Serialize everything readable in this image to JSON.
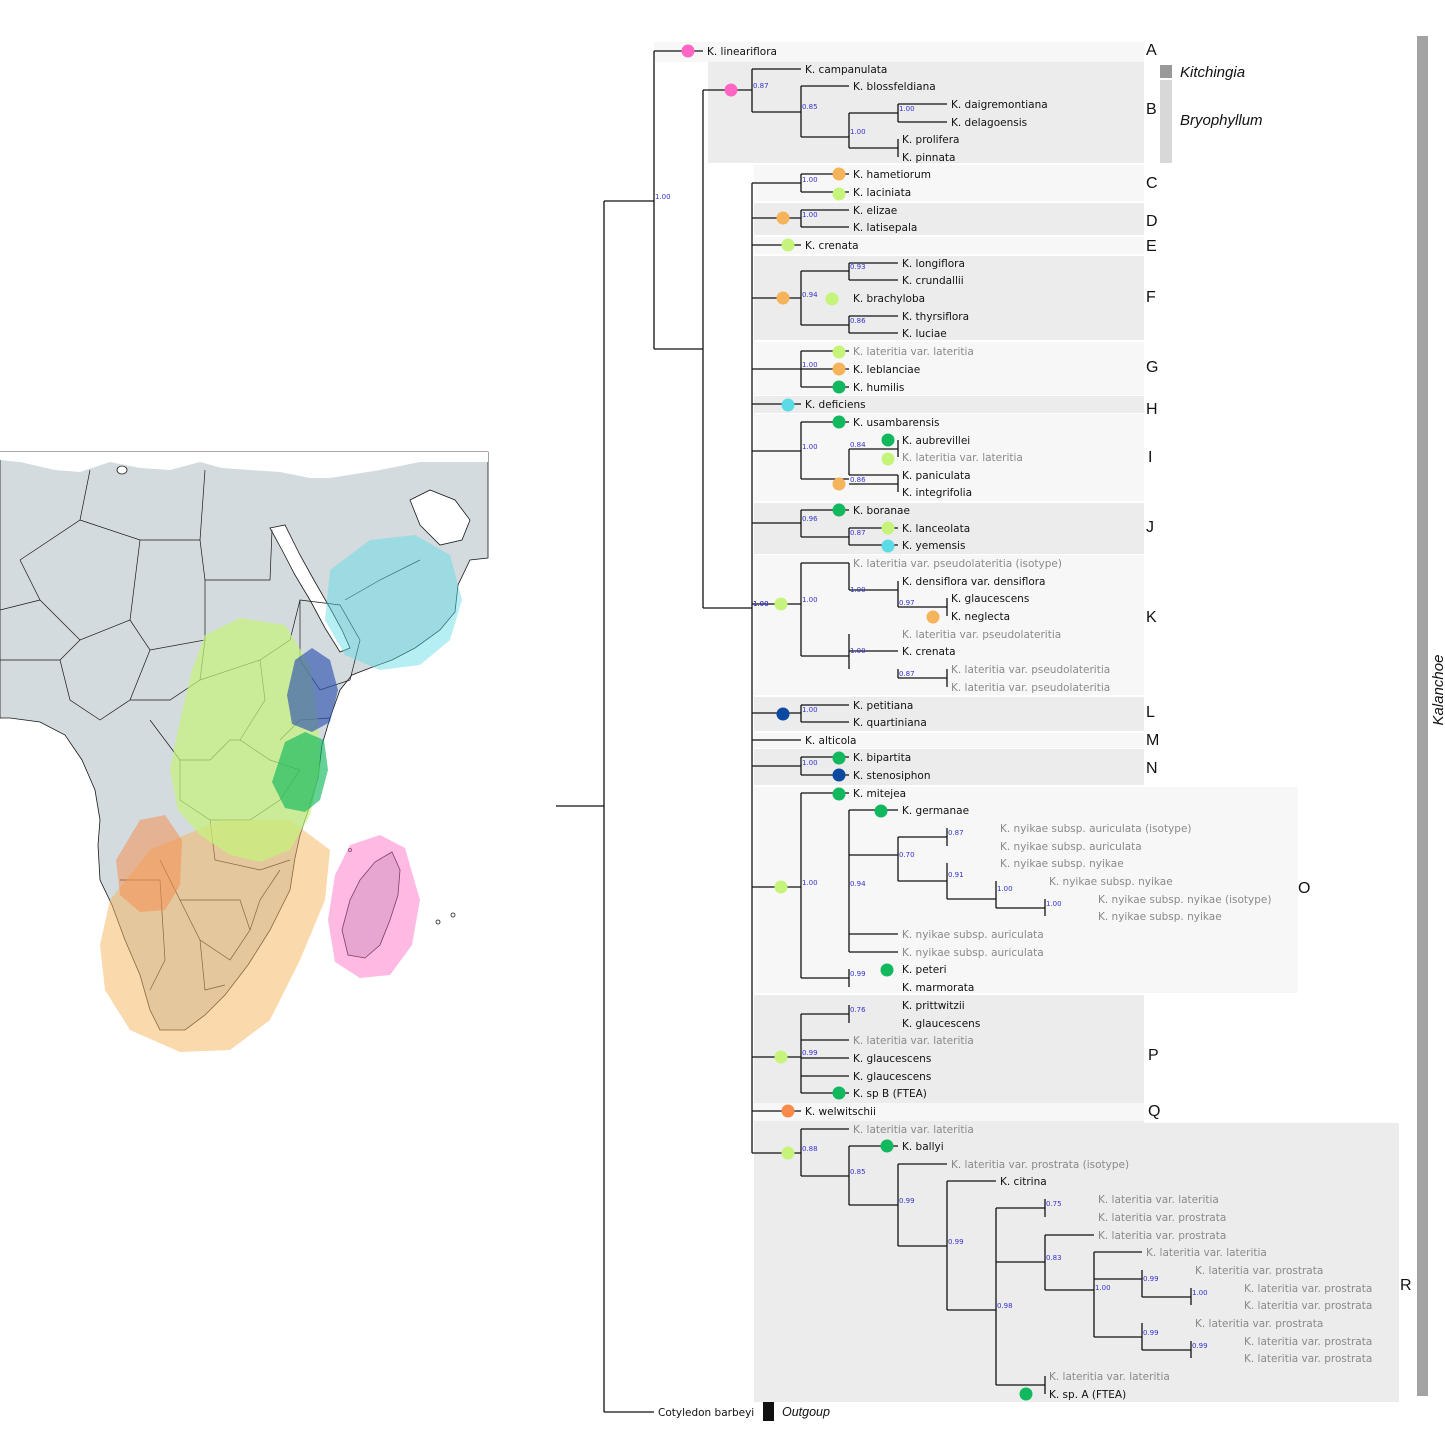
{
  "tip_colors": {
    "dark": "#111111",
    "grey": "#8a8a8a"
  },
  "region_colors": {
    "pink": "#ff66c4",
    "orange": "#f5b35a",
    "lime": "#c6f47a",
    "green": "#11b85e",
    "cyan": "#5bdbe6",
    "navy": "#0b4aa0",
    "darkorange": "#f88a4a"
  },
  "tips": [
    {
      "label": "K. lineariflora",
      "grey": false
    },
    {
      "label": "K. campanulata",
      "grey": false
    },
    {
      "label": "K. blossfeldiana",
      "grey": false
    },
    {
      "label": "K. daigremontiana",
      "grey": false
    },
    {
      "label": "K. delagoensis",
      "grey": false
    },
    {
      "label": "K. prolifera",
      "grey": false
    },
    {
      "label": "K. pinnata",
      "grey": false
    },
    {
      "label": "K. hametiorum",
      "grey": false
    },
    {
      "label": "K. laciniata",
      "grey": false
    },
    {
      "label": "K. elizae",
      "grey": false
    },
    {
      "label": "K. latisepala",
      "grey": false
    },
    {
      "label": "K. crenata",
      "grey": false
    },
    {
      "label": "K. longiflora",
      "grey": false
    },
    {
      "label": "K. crundallii",
      "grey": false
    },
    {
      "label": "K. brachyloba",
      "grey": false
    },
    {
      "label": "K. thyrsiflora",
      "grey": false
    },
    {
      "label": "K. luciae",
      "grey": false
    },
    {
      "label": "K. lateritia var. lateritia",
      "grey": true
    },
    {
      "label": "K. leblanciae",
      "grey": false
    },
    {
      "label": "K. humilis",
      "grey": false
    },
    {
      "label": "K. deficiens",
      "grey": false
    },
    {
      "label": "K. usambarensis",
      "grey": false
    },
    {
      "label": "K. aubrevillei",
      "grey": false
    },
    {
      "label": "K. lateritia var. lateritia",
      "grey": true
    },
    {
      "label": "K. paniculata",
      "grey": false
    },
    {
      "label": "K. integrifolia",
      "grey": false
    },
    {
      "label": "K. boranae",
      "grey": false
    },
    {
      "label": "K. lanceolata",
      "grey": false
    },
    {
      "label": "K. yemensis",
      "grey": false
    },
    {
      "label": "K. lateritia var. pseudolateritia (isotype)",
      "grey": true
    },
    {
      "label": "K. densiflora var. densiflora",
      "grey": false
    },
    {
      "label": "K. glaucescens",
      "grey": false
    },
    {
      "label": "K. neglecta",
      "grey": false
    },
    {
      "label": "K. lateritia var. pseudolateritia",
      "grey": true
    },
    {
      "label": "K. crenata",
      "grey": false
    },
    {
      "label": "K. lateritia var. pseudolateritia",
      "grey": true
    },
    {
      "label": "K. lateritia var. pseudolateritia",
      "grey": true
    },
    {
      "label": "K. petitiana",
      "grey": false
    },
    {
      "label": "K. quartiniana",
      "grey": false
    },
    {
      "label": "K. alticola",
      "grey": false
    },
    {
      "label": "K. bipartita",
      "grey": false
    },
    {
      "label": "K. stenosiphon",
      "grey": false
    },
    {
      "label": "K. mitejea",
      "grey": false
    },
    {
      "label": "K. germanae",
      "grey": false
    },
    {
      "label": "K. nyikae subsp. auriculata (isotype)",
      "grey": true
    },
    {
      "label": "K. nyikae subsp. auriculata",
      "grey": true
    },
    {
      "label": "K. nyikae subsp. nyikae",
      "grey": true
    },
    {
      "label": "K. nyikae subsp. nyikae",
      "grey": true
    },
    {
      "label": "K. nyikae subsp. nyikae (isotype)",
      "grey": true
    },
    {
      "label": "K. nyikae subsp. nyikae",
      "grey": true
    },
    {
      "label": "K. nyikae subsp. auriculata",
      "grey": true
    },
    {
      "label": "K. nyikae subsp. auriculata",
      "grey": true
    },
    {
      "label": "K. peteri",
      "grey": false
    },
    {
      "label": "K. marmorata",
      "grey": false
    },
    {
      "label": "K. prittwitzii",
      "grey": false
    },
    {
      "label": "K. glaucescens",
      "grey": false
    },
    {
      "label": "K. lateritia var. lateritia",
      "grey": true
    },
    {
      "label": "K. glaucescens",
      "grey": false
    },
    {
      "label": "K. glaucescens",
      "grey": false
    },
    {
      "label": "K. sp B (FTEA)",
      "grey": false
    },
    {
      "label": "K. welwitschii",
      "grey": false
    },
    {
      "label": "K. lateritia var. lateritia",
      "grey": true
    },
    {
      "label": "K. ballyi",
      "grey": false
    },
    {
      "label": "K. lateritia var. prostrata (isotype)",
      "grey": true
    },
    {
      "label": "K. citrina",
      "grey": false
    },
    {
      "label": "K. lateritia var. lateritia",
      "grey": true
    },
    {
      "label": "K. lateritia var. prostrata",
      "grey": true
    },
    {
      "label": "K. lateritia var. prostrata",
      "grey": true
    },
    {
      "label": "K. lateritia var. lateritia",
      "grey": true
    },
    {
      "label": "K. lateritia var. prostrata",
      "grey": true
    },
    {
      "label": "K. lateritia var. prostrata",
      "grey": true
    },
    {
      "label": "K. lateritia var. prostrata",
      "grey": true
    },
    {
      "label": "K. lateritia var. prostrata",
      "grey": true
    },
    {
      "label": "K. lateritia var. prostrata",
      "grey": true
    },
    {
      "label": "K. lateritia var. prostrata",
      "grey": true
    },
    {
      "label": "K. lateritia var. lateritia",
      "grey": true
    },
    {
      "label": "K. sp. A (FTEA)",
      "grey": false
    },
    {
      "label": "Cotyledon barbeyi",
      "grey": false
    }
  ],
  "support_values": [
    "0.87",
    "0.85",
    "1.00",
    "1.00",
    "1.00",
    "1.00",
    "0.93",
    "0.94",
    "0.86",
    "1.00",
    "1.00",
    "0.84",
    "0.86",
    "0.96",
    "0.87",
    "1.00",
    "1.00",
    "1.00",
    "0.97",
    "1.00",
    "0.87",
    "1.00",
    "1.00",
    "1.00",
    "1.00",
    "0.94",
    "0.70",
    "0.87",
    "0.91",
    "1.00",
    "1.00",
    "0.99",
    "0.76",
    "0.99",
    "0.88",
    "0.85",
    "0.99",
    "0.99",
    "0.75",
    "0.83",
    "0.99",
    "1.00",
    "0.99",
    "1.00",
    "0.99",
    "0.98",
    "1.00"
  ],
  "clade_letters": [
    "A",
    "B",
    "C",
    "D",
    "E",
    "F",
    "G",
    "H",
    "I",
    "J",
    "K",
    "L",
    "M",
    "N",
    "O",
    "P",
    "Q",
    "R"
  ],
  "genus_labels": {
    "kitchingia": "Kitchingia",
    "bryophyllum": "Bryophyllum",
    "kalanchoe": "Kalanchoe",
    "outgroup": "Outgoup"
  }
}
